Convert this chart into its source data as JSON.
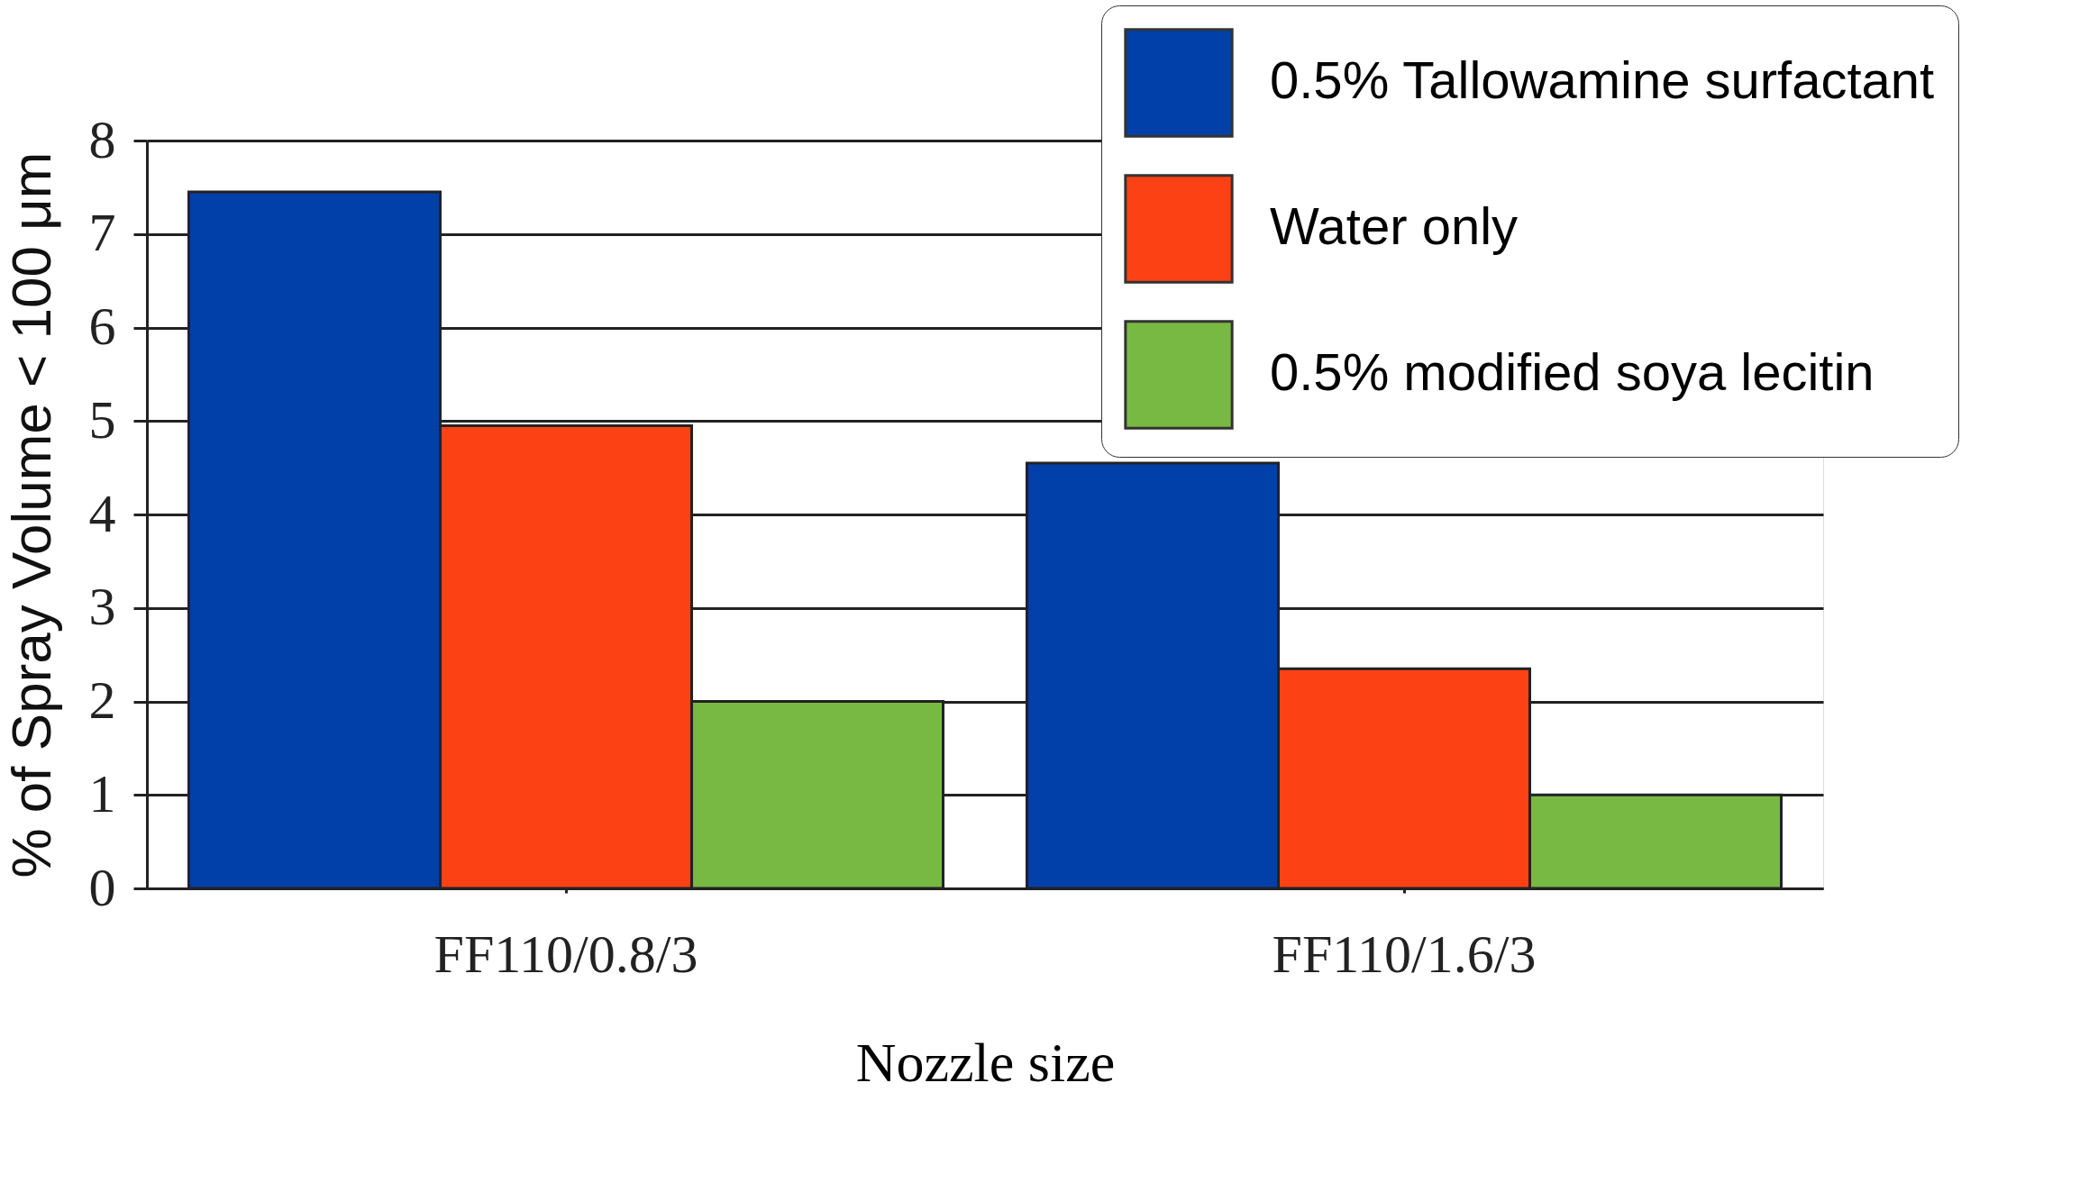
{
  "chart_data": {
    "type": "bar",
    "xlabel": "Nozzle size",
    "ylabel": "% of Spray Volume < 100 μm",
    "categories": [
      "FF110/0.8/3",
      "FF110/1.6/3"
    ],
    "series": [
      {
        "name": "0.5% Tallowamine surfactant",
        "color": "#0040a8",
        "values": [
          7.45,
          4.55
        ]
      },
      {
        "name": "Water only",
        "color": "#fc4114",
        "values": [
          4.95,
          2.35
        ]
      },
      {
        "name": "0.5% modified soya lecitin",
        "color": "#78b943",
        "values": [
          2.0,
          1.0
        ]
      }
    ],
    "ylim": [
      0,
      8
    ],
    "yticks": [
      0,
      1,
      2,
      3,
      4,
      5,
      6,
      7,
      8
    ],
    "grid": "y",
    "legend": "top right"
  }
}
